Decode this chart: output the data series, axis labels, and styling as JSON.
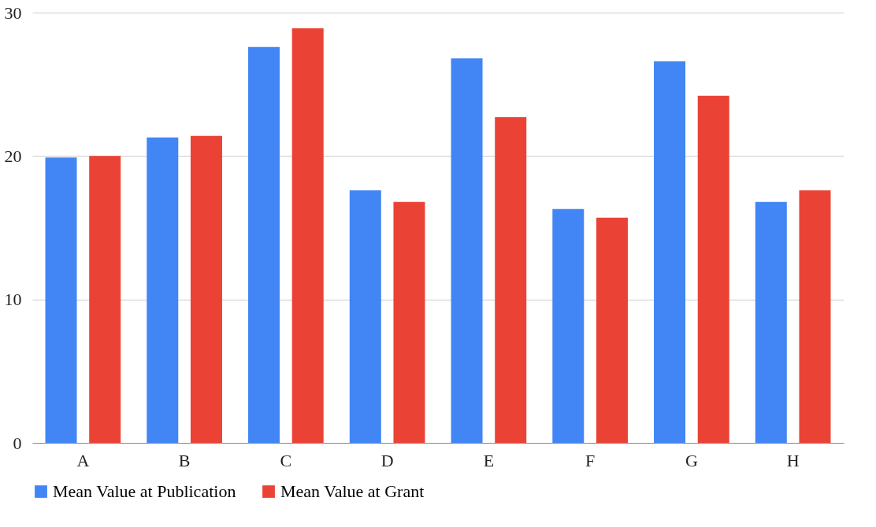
{
  "chart_data": {
    "type": "bar",
    "categories": [
      "A",
      "B",
      "C",
      "D",
      "E",
      "F",
      "G",
      "H"
    ],
    "series": [
      {
        "name": "Mean Value at Publication",
        "color": "#4285f4",
        "values": [
          19.9,
          21.3,
          27.6,
          17.6,
          26.8,
          16.3,
          26.6,
          16.8
        ]
      },
      {
        "name": "Mean Value at Grant",
        "color": "#ea4335",
        "values": [
          20.0,
          21.4,
          28.9,
          16.8,
          22.7,
          15.7,
          24.2,
          17.6
        ]
      }
    ],
    "ylim": [
      0,
      30
    ],
    "yticks": [
      0,
      10,
      20,
      30
    ],
    "grid": "y",
    "legend": "bottom"
  }
}
